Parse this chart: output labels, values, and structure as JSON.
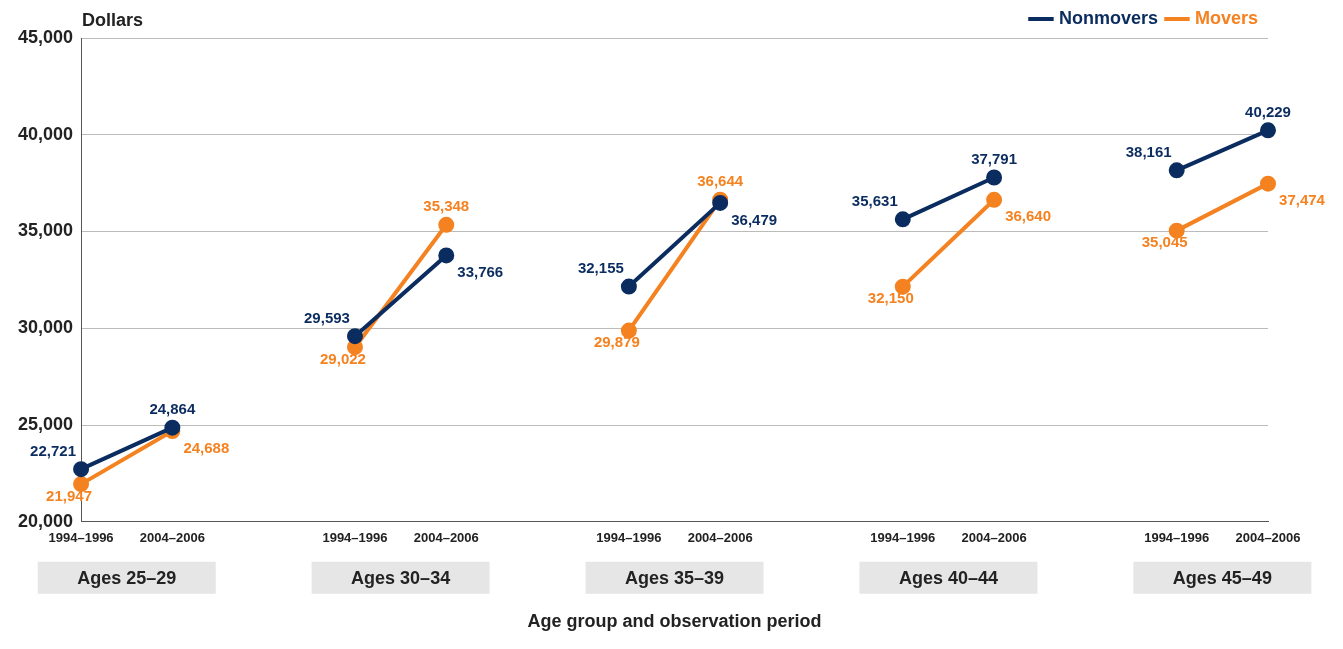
{
  "chart_data": {
    "type": "line",
    "ylabel": "Dollars",
    "xlabel": "Age group and observation period",
    "categories": [
      "1994–1996",
      "2004–2006",
      null,
      "1994–1996",
      "2004–2006",
      null,
      "1994–1996",
      "2004–2006",
      null,
      "1994–1996",
      "2004–2006",
      null,
      "1994–1996",
      "2004–2006"
    ],
    "series": [
      {
        "name": "Nonmovers",
        "color": "#0b2c5f",
        "values": [
          22721,
          24864,
          null,
          29593,
          33766,
          null,
          32155,
          36479,
          null,
          35631,
          37791,
          null,
          38161,
          40229
        ],
        "value_labels": [
          "22,721",
          "24,864",
          null,
          "29,593",
          "33,766",
          null,
          "32,155",
          "36,479",
          null,
          "35,631",
          "37,791",
          null,
          "38,161",
          "40,229"
        ]
      },
      {
        "name": "Movers",
        "color": "#f58220",
        "values": [
          21947,
          24688,
          null,
          29022,
          35348,
          null,
          29879,
          36644,
          null,
          32150,
          36640,
          null,
          35045,
          37474
        ],
        "value_labels": [
          "21,947",
          "24,688",
          null,
          "29,022",
          "35,348",
          null,
          "29,879",
          "36,644",
          null,
          "32,150",
          "36,640",
          null,
          "35,045",
          "37,474"
        ]
      }
    ],
    "ylim": [
      20000,
      45000
    ],
    "yticks": [
      {
        "value": 20000,
        "label": "20,000"
      },
      {
        "value": 25000,
        "label": "25,000"
      },
      {
        "value": 30000,
        "label": "30,000"
      },
      {
        "value": 35000,
        "label": "35,000"
      },
      {
        "value": 40000,
        "label": "40,000"
      },
      {
        "value": 45000,
        "label": "45,000"
      }
    ],
    "grid": "y",
    "legend": "top right",
    "marker": "circle",
    "line_style": "solid",
    "annotations": [
      "Ages 25–29",
      "Ages 30–34",
      "Ages 35–39",
      "Ages 40–44",
      "Ages 45–49"
    ]
  }
}
